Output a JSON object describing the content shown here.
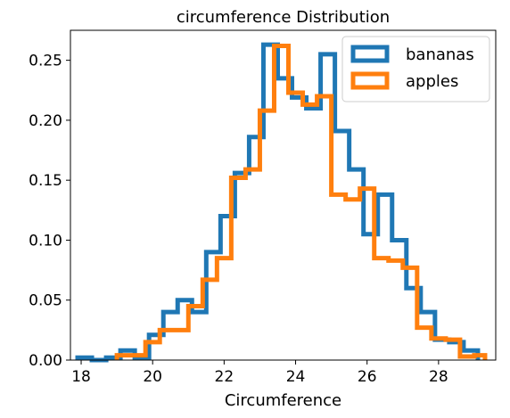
{
  "chart_data": {
    "type": "step-histogram",
    "title": "circumference Distribution",
    "xlabel": "Circumference",
    "ylabel": "",
    "xlim": [
      17.7,
      29.6
    ],
    "ylim": [
      0,
      0.275
    ],
    "xticks": [
      18,
      20,
      22,
      24,
      26,
      28
    ],
    "yticks": [
      0.0,
      0.05,
      0.1,
      0.15,
      0.2,
      0.25
    ],
    "ytick_labels": [
      "0.00",
      "0.05",
      "0.10",
      "0.15",
      "0.20",
      "0.25"
    ],
    "legend": {
      "position": "top-right",
      "entries": [
        "bananas",
        "apples"
      ]
    },
    "colors": {
      "bananas": "#1f77b4",
      "apples": "#ff7f0e"
    },
    "series": [
      {
        "name": "bananas",
        "edges": [
          17.9,
          18.3,
          18.7,
          19.1,
          19.5,
          19.9,
          20.3,
          20.7,
          21.1,
          21.5,
          21.9,
          22.3,
          22.7,
          23.1,
          23.5,
          23.9,
          24.3,
          24.7,
          25.1,
          25.5,
          25.9,
          26.3,
          26.7,
          27.1,
          27.5,
          27.9,
          28.3,
          28.7,
          29.1
        ],
        "values": [
          0.002,
          0.0,
          0.002,
          0.008,
          0.002,
          0.021,
          0.04,
          0.05,
          0.04,
          0.09,
          0.12,
          0.156,
          0.186,
          0.263,
          0.235,
          0.219,
          0.21,
          0.255,
          0.191,
          0.159,
          0.105,
          0.138,
          0.1,
          0.06,
          0.04,
          0.017,
          0.015,
          0.008
        ]
      },
      {
        "name": "apples",
        "edges": [
          19.0,
          19.4,
          19.8,
          20.2,
          20.6,
          21.0,
          21.4,
          21.8,
          22.2,
          22.6,
          23.0,
          23.4,
          23.8,
          24.2,
          24.6,
          25.0,
          25.4,
          25.8,
          26.2,
          26.6,
          27.0,
          27.4,
          27.8,
          28.2,
          28.6,
          29.0,
          29.3
        ],
        "values": [
          0.004,
          0.004,
          0.015,
          0.025,
          0.025,
          0.045,
          0.067,
          0.085,
          0.152,
          0.159,
          0.208,
          0.262,
          0.223,
          0.213,
          0.22,
          0.138,
          0.134,
          0.143,
          0.085,
          0.083,
          0.077,
          0.027,
          0.018,
          0.017,
          0.003,
          0.004
        ]
      }
    ]
  }
}
